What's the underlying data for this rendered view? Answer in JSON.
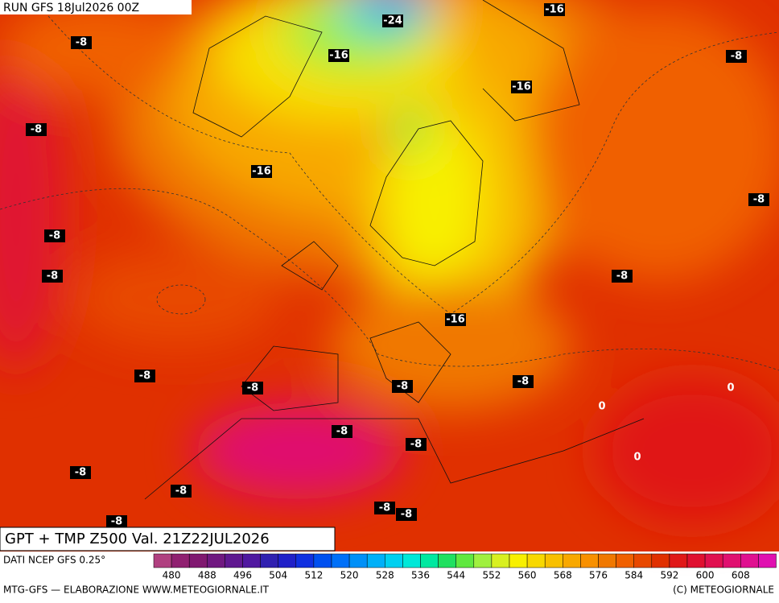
{
  "header": {
    "run": "RUN GFS 18Jul2026 00Z",
    "title": "GPT + TMP Z500 Val. 21Z22JUL2026"
  },
  "contour_labels": [
    "-8",
    "-8",
    "-8",
    "-8",
    "-8",
    "-8",
    "-8",
    "-8",
    "-8",
    "-8",
    "-8",
    "-8",
    "-8",
    "-8",
    "-8",
    "-8",
    "-8",
    "-8",
    "-24",
    "-16",
    "-16",
    "-16",
    "-16",
    "-16",
    "0",
    "0",
    "0"
  ],
  "legend": {
    "source": "DATI NCEP GFS 0.25°",
    "colors": [
      "#b04080",
      "#902070",
      "#801870",
      "#701880",
      "#601890",
      "#5018a0",
      "#3020b0",
      "#2020c8",
      "#1030e0",
      "#0050f0",
      "#0070f8",
      "#0090f8",
      "#00b0f8",
      "#00d0f0",
      "#00e8d8",
      "#00e8a0",
      "#20e060",
      "#60e840",
      "#a0f040",
      "#d8f020",
      "#f8f000",
      "#f8d800",
      "#f8c000",
      "#f8a800",
      "#f89000",
      "#f07800",
      "#f06000",
      "#e84800",
      "#e03000",
      "#e01818",
      "#e01030",
      "#e01050",
      "#e01070",
      "#e01090",
      "#e010b0"
    ],
    "labels": [
      480,
      488,
      496,
      504,
      512,
      520,
      528,
      536,
      544,
      552,
      560,
      568,
      576,
      584,
      592,
      600,
      608
    ]
  },
  "footer": {
    "left": "MTG-GFS — ELABORAZIONE WWW.METEOGIORNALE.IT",
    "right": "(C) METEOGIORNALE"
  }
}
